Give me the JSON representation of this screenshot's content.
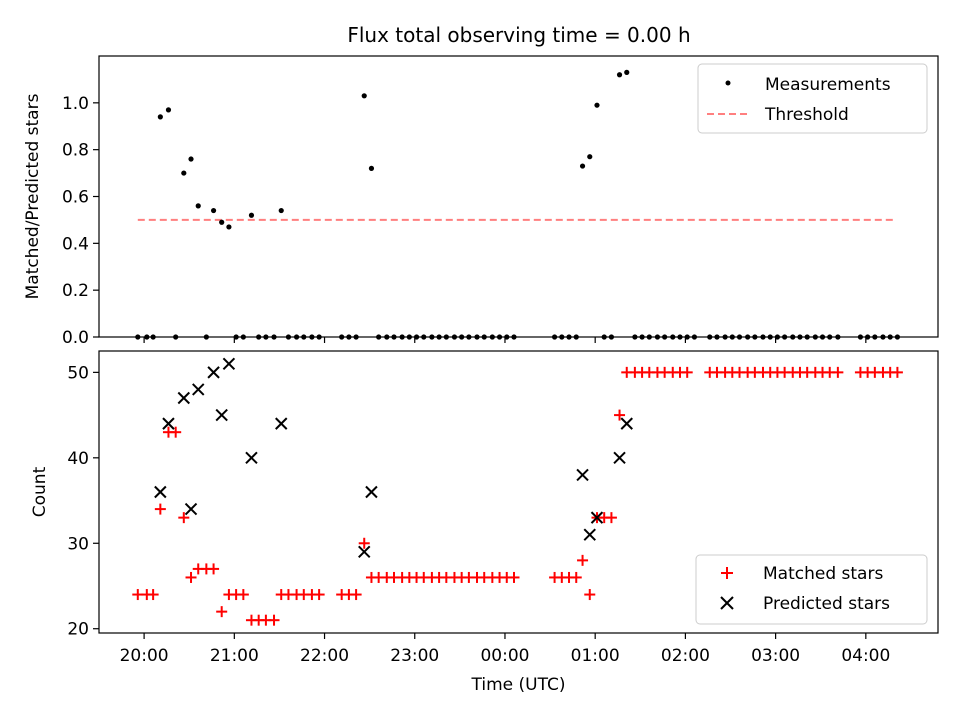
{
  "figure": {
    "title": "Flux total observing time = 0.00 h"
  },
  "chart_data": [
    {
      "type": "scatter",
      "panel": "top",
      "ylabel": "Matched/Predicted stars",
      "xlim_hours": [
        19.5,
        28.8
      ],
      "ylim": [
        0,
        1.2
      ],
      "yticks": [
        0.0,
        0.2,
        0.4,
        0.6,
        0.8,
        1.0
      ],
      "ytick_labels": [
        "0.0",
        "0.2",
        "0.4",
        "0.6",
        "0.8",
        "1.0"
      ],
      "legend_position": "top-right",
      "threshold": {
        "label": "Threshold",
        "value": 0.5,
        "x_range": [
          19.93,
          28.33
        ],
        "color": "#ff7f7f"
      },
      "measurements": {
        "label": "Measurements",
        "color": "#000000",
        "points": [
          [
            19.93,
            0
          ],
          [
            20.03,
            0
          ],
          [
            20.1,
            0
          ],
          [
            20.18,
            0.94
          ],
          [
            20.27,
            0.97
          ],
          [
            20.35,
            0
          ],
          [
            20.44,
            0.7
          ],
          [
            20.52,
            0.76
          ],
          [
            20.6,
            0.56
          ],
          [
            20.69,
            0
          ],
          [
            20.77,
            0.54
          ],
          [
            20.86,
            0.49
          ],
          [
            20.94,
            0.47
          ],
          [
            21.02,
            0
          ],
          [
            21.1,
            0
          ],
          [
            21.19,
            0.52
          ],
          [
            21.27,
            0
          ],
          [
            21.35,
            0
          ],
          [
            21.44,
            0
          ],
          [
            21.52,
            0.54
          ],
          [
            21.6,
            0
          ],
          [
            21.69,
            0
          ],
          [
            21.77,
            0
          ],
          [
            21.86,
            0
          ],
          [
            21.94,
            0
          ],
          [
            22.19,
            0
          ],
          [
            22.27,
            0
          ],
          [
            22.35,
            0
          ],
          [
            22.44,
            1.03
          ],
          [
            22.52,
            0.72
          ],
          [
            22.6,
            0
          ],
          [
            22.69,
            0
          ],
          [
            22.77,
            0
          ],
          [
            22.86,
            0
          ],
          [
            22.94,
            0
          ],
          [
            23.02,
            0
          ],
          [
            23.1,
            0
          ],
          [
            23.19,
            0
          ],
          [
            23.27,
            0
          ],
          [
            23.35,
            0
          ],
          [
            23.44,
            0
          ],
          [
            23.52,
            0
          ],
          [
            23.6,
            0
          ],
          [
            23.69,
            0
          ],
          [
            23.77,
            0
          ],
          [
            23.86,
            0
          ],
          [
            23.94,
            0
          ],
          [
            24.02,
            0
          ],
          [
            24.1,
            0
          ],
          [
            24.55,
            0
          ],
          [
            24.63,
            0
          ],
          [
            24.71,
            0
          ],
          [
            24.79,
            0
          ],
          [
            24.86,
            0.73
          ],
          [
            24.94,
            0.77
          ],
          [
            25.02,
            0.99
          ],
          [
            25.1,
            0
          ],
          [
            25.18,
            0
          ],
          [
            25.27,
            1.12
          ],
          [
            25.35,
            1.13
          ],
          [
            25.44,
            0
          ],
          [
            25.52,
            0
          ],
          [
            25.6,
            0
          ],
          [
            25.69,
            0
          ],
          [
            25.77,
            0
          ],
          [
            25.86,
            0
          ],
          [
            25.94,
            0
          ],
          [
            26.02,
            0
          ],
          [
            26.1,
            0
          ],
          [
            26.27,
            0
          ],
          [
            26.35,
            0
          ],
          [
            26.44,
            0
          ],
          [
            26.52,
            0
          ],
          [
            26.6,
            0
          ],
          [
            26.69,
            0
          ],
          [
            26.77,
            0
          ],
          [
            26.86,
            0
          ],
          [
            26.94,
            0
          ],
          [
            27.02,
            0
          ],
          [
            27.1,
            0
          ],
          [
            27.19,
            0
          ],
          [
            27.27,
            0
          ],
          [
            27.35,
            0
          ],
          [
            27.44,
            0
          ],
          [
            27.52,
            0
          ],
          [
            27.6,
            0
          ],
          [
            27.69,
            0
          ],
          [
            27.94,
            0
          ],
          [
            28.02,
            0
          ],
          [
            28.1,
            0
          ],
          [
            28.19,
            0
          ],
          [
            28.27,
            0
          ],
          [
            28.35,
            0
          ]
        ]
      }
    },
    {
      "type": "scatter",
      "panel": "bottom",
      "ylabel": "Count",
      "xlabel": "Time (UTC)",
      "xlim_hours": [
        19.5,
        28.8
      ],
      "ylim": [
        19.5,
        52.5
      ],
      "yticks": [
        20,
        30,
        40,
        50
      ],
      "ytick_labels": [
        "20",
        "30",
        "40",
        "50"
      ],
      "xticks_hours": [
        20,
        21,
        22,
        23,
        24,
        25,
        26,
        27,
        28
      ],
      "xtick_labels": [
        "20:00",
        "21:00",
        "22:00",
        "23:00",
        "00:00",
        "01:00",
        "02:00",
        "03:00",
        "04:00"
      ],
      "legend_position": "bottom-right",
      "series": [
        {
          "name": "Matched stars",
          "marker": "plus",
          "color": "#ff0000",
          "points": [
            [
              19.93,
              24
            ],
            [
              20.03,
              24
            ],
            [
              20.1,
              24
            ],
            [
              20.18,
              34
            ],
            [
              20.27,
              43
            ],
            [
              20.35,
              43
            ],
            [
              20.44,
              33
            ],
            [
              20.52,
              26
            ],
            [
              20.6,
              27
            ],
            [
              20.69,
              27
            ],
            [
              20.77,
              27
            ],
            [
              20.86,
              22
            ],
            [
              20.94,
              24
            ],
            [
              21.02,
              24
            ],
            [
              21.1,
              24
            ],
            [
              21.19,
              21
            ],
            [
              21.27,
              21
            ],
            [
              21.35,
              21
            ],
            [
              21.44,
              21
            ],
            [
              21.52,
              24
            ],
            [
              21.6,
              24
            ],
            [
              21.69,
              24
            ],
            [
              21.77,
              24
            ],
            [
              21.86,
              24
            ],
            [
              21.94,
              24
            ],
            [
              22.19,
              24
            ],
            [
              22.27,
              24
            ],
            [
              22.35,
              24
            ],
            [
              22.44,
              30
            ],
            [
              22.52,
              26
            ],
            [
              22.6,
              26
            ],
            [
              22.69,
              26
            ],
            [
              22.77,
              26
            ],
            [
              22.86,
              26
            ],
            [
              22.94,
              26
            ],
            [
              23.02,
              26
            ],
            [
              23.1,
              26
            ],
            [
              23.19,
              26
            ],
            [
              23.27,
              26
            ],
            [
              23.35,
              26
            ],
            [
              23.44,
              26
            ],
            [
              23.52,
              26
            ],
            [
              23.6,
              26
            ],
            [
              23.69,
              26
            ],
            [
              23.77,
              26
            ],
            [
              23.86,
              26
            ],
            [
              23.94,
              26
            ],
            [
              24.02,
              26
            ],
            [
              24.1,
              26
            ],
            [
              24.55,
              26
            ],
            [
              24.63,
              26
            ],
            [
              24.71,
              26
            ],
            [
              24.79,
              26
            ],
            [
              24.86,
              28
            ],
            [
              24.94,
              24
            ],
            [
              25.02,
              33
            ],
            [
              25.1,
              33
            ],
            [
              25.18,
              33
            ],
            [
              25.27,
              45
            ],
            [
              25.35,
              50
            ],
            [
              25.44,
              50
            ],
            [
              25.52,
              50
            ],
            [
              25.6,
              50
            ],
            [
              25.69,
              50
            ],
            [
              25.77,
              50
            ],
            [
              25.86,
              50
            ],
            [
              25.94,
              50
            ],
            [
              26.02,
              50
            ],
            [
              26.27,
              50
            ],
            [
              26.35,
              50
            ],
            [
              26.44,
              50
            ],
            [
              26.52,
              50
            ],
            [
              26.6,
              50
            ],
            [
              26.69,
              50
            ],
            [
              26.77,
              50
            ],
            [
              26.86,
              50
            ],
            [
              26.94,
              50
            ],
            [
              27.02,
              50
            ],
            [
              27.1,
              50
            ],
            [
              27.19,
              50
            ],
            [
              27.27,
              50
            ],
            [
              27.35,
              50
            ],
            [
              27.44,
              50
            ],
            [
              27.52,
              50
            ],
            [
              27.6,
              50
            ],
            [
              27.69,
              50
            ],
            [
              27.94,
              50
            ],
            [
              28.02,
              50
            ],
            [
              28.1,
              50
            ],
            [
              28.19,
              50
            ],
            [
              28.27,
              50
            ],
            [
              28.35,
              50
            ]
          ]
        },
        {
          "name": "Predicted stars",
          "marker": "x",
          "color": "#000000",
          "points": [
            [
              20.18,
              36
            ],
            [
              20.27,
              44
            ],
            [
              20.44,
              47
            ],
            [
              20.52,
              34
            ],
            [
              20.6,
              48
            ],
            [
              20.77,
              50
            ],
            [
              20.86,
              45
            ],
            [
              20.94,
              51
            ],
            [
              21.19,
              40
            ],
            [
              21.52,
              44
            ],
            [
              22.44,
              29
            ],
            [
              22.52,
              36
            ],
            [
              24.86,
              38
            ],
            [
              24.94,
              31
            ],
            [
              25.02,
              33
            ],
            [
              25.27,
              40
            ],
            [
              25.35,
              44
            ]
          ]
        }
      ]
    }
  ]
}
